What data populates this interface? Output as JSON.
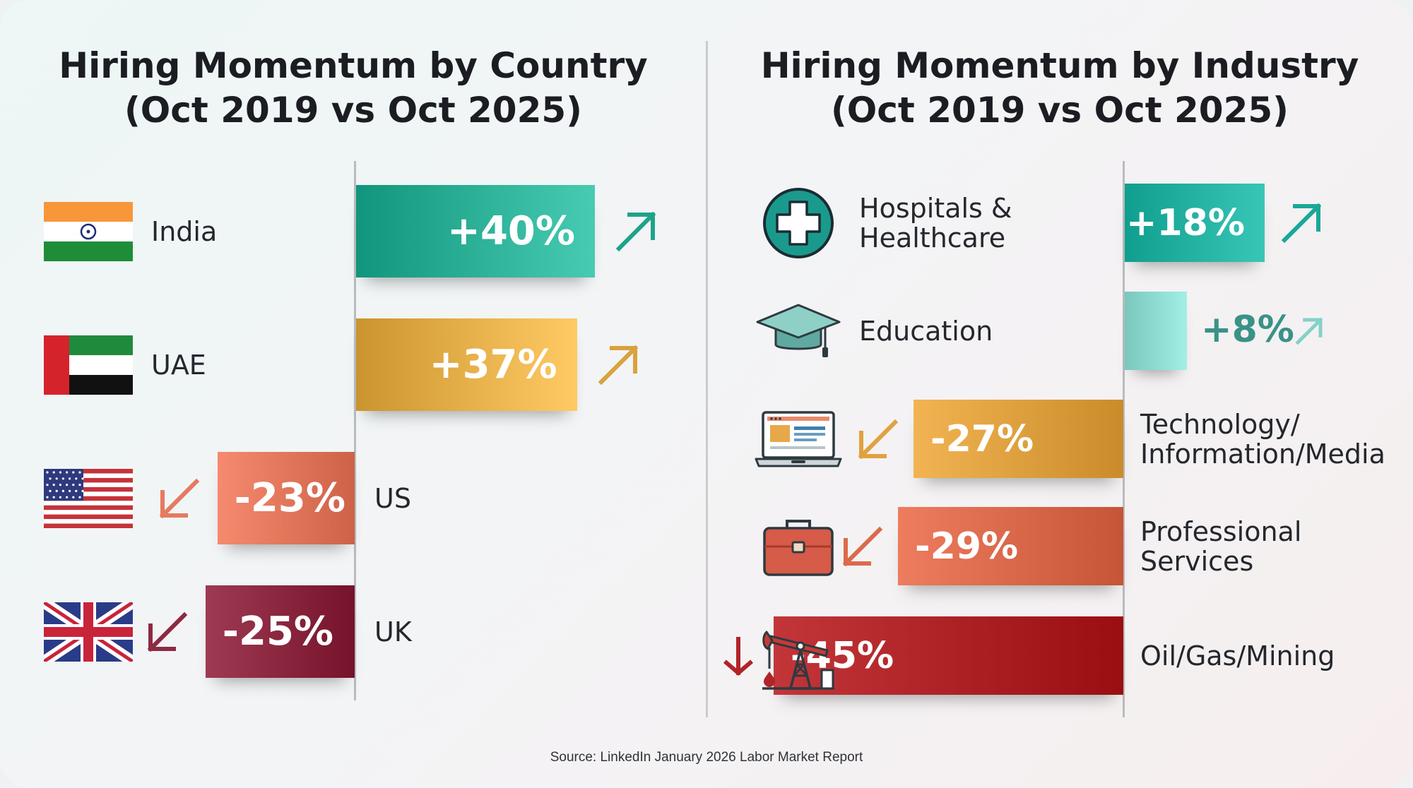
{
  "left_panel": {
    "title_line1": "Hiring Momentum by Country",
    "title_line2": "(Oct 2019 vs Oct 2025)"
  },
  "right_panel": {
    "title_line1": "Hiring Momentum by Industry",
    "title_line2": "(Oct 2019 vs Oct 2025)"
  },
  "source": "Source: LinkedIn January 2026 Labor Market Report",
  "colors": {
    "teal": "#1fa38a",
    "gold": "#d9a23c",
    "salmon": "#e67a5f",
    "maroon": "#8e2a42",
    "dark_red": "#b02428",
    "light_teal": "#84d1c8"
  },
  "chart_data": [
    {
      "type": "bar",
      "title": "Hiring Momentum by Country (Oct 2019 vs Oct 2025)",
      "categories": [
        "India",
        "UAE",
        "US",
        "UK"
      ],
      "values": [
        40,
        37,
        -23,
        -25
      ],
      "value_labels": [
        "+40%",
        "+37%",
        "-23%",
        "-25%"
      ],
      "icons": [
        "india-flag",
        "uae-flag",
        "us-flag",
        "uk-flag"
      ],
      "arrows": [
        "up-right",
        "up-right",
        "down-left",
        "down-left"
      ],
      "colors": [
        "#1fa38a",
        "#d9a23c",
        "#e67a5f",
        "#8e2a42"
      ],
      "orientation": "horizontal",
      "grid": false,
      "legend": "none"
    },
    {
      "type": "bar",
      "title": "Hiring Momentum by Industry (Oct 2019 vs Oct 2025)",
      "categories": [
        "Hospitals & Healthcare",
        "Education",
        "Technology/ Information/Media",
        "Professional Services",
        "Oil/Gas/Mining"
      ],
      "category_lines": [
        [
          "Hospitals &",
          "Healthcare"
        ],
        [
          "Education"
        ],
        [
          "Technology/",
          "Information/Media"
        ],
        [
          "Professional",
          "Services"
        ],
        [
          "Oil/Gas/Mining"
        ]
      ],
      "values": [
        18,
        8,
        -27,
        -29,
        -45
      ],
      "value_labels": [
        "+18%",
        "+8%",
        "-27%",
        "-29%",
        "-45%"
      ],
      "icons": [
        "medical-cross-icon",
        "graduation-cap-icon",
        "laptop-icon",
        "briefcase-icon",
        "oil-pump-icon"
      ],
      "arrows": [
        "up-right",
        "up-right",
        "down-left",
        "down-left",
        "down"
      ],
      "colors": [
        "#1aa898",
        "#84d1c8",
        "#e0a240",
        "#dc6a4c",
        "#b02428"
      ],
      "orientation": "horizontal",
      "grid": false,
      "legend": "none"
    }
  ]
}
